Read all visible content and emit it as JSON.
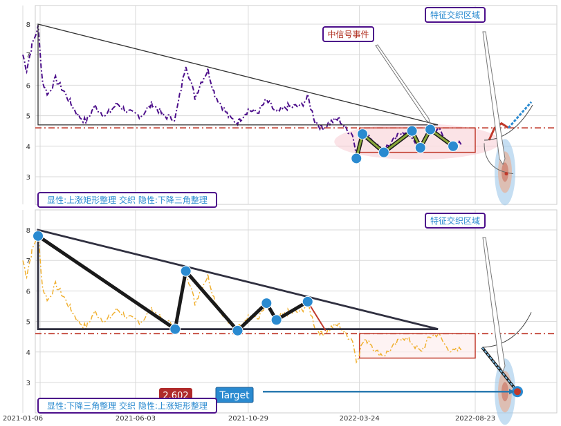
{
  "chart_data": {
    "type": "line",
    "x_ticks": [
      "2021-01-06",
      "2021-06-03",
      "2021-10-29",
      "2022-03-24",
      "2022-08-23"
    ],
    "y_ticks": [
      3,
      4,
      5,
      6,
      7,
      8
    ],
    "ylim": [
      2.2,
      8.6
    ],
    "support_level": 4.6,
    "grid": true,
    "panels": [
      {
        "id": "top",
        "series_color": "#4b0d8a",
        "price": [
          {
            "x": "2021-01-06",
            "y": 7.0
          },
          {
            "x": "2021-01-11",
            "y": 6.5
          },
          {
            "x": "2021-01-18",
            "y": 7.3
          },
          {
            "x": "2021-01-26",
            "y": 7.9
          },
          {
            "x": "2021-02-01",
            "y": 6.1
          },
          {
            "x": "2021-02-08",
            "y": 5.7
          },
          {
            "x": "2021-02-18",
            "y": 6.2
          },
          {
            "x": "2021-03-01",
            "y": 5.8
          },
          {
            "x": "2021-03-10",
            "y": 5.4
          },
          {
            "x": "2021-03-20",
            "y": 5.0
          },
          {
            "x": "2021-03-30",
            "y": 4.8
          },
          {
            "x": "2021-04-10",
            "y": 5.3
          },
          {
            "x": "2021-04-25",
            "y": 5.0
          },
          {
            "x": "2021-05-10",
            "y": 5.4
          },
          {
            "x": "2021-05-25",
            "y": 5.1
          },
          {
            "x": "2021-06-10",
            "y": 5.0
          },
          {
            "x": "2021-06-25",
            "y": 5.4
          },
          {
            "x": "2021-07-10",
            "y": 5.0
          },
          {
            "x": "2021-07-25",
            "y": 4.9
          },
          {
            "x": "2021-08-02",
            "y": 5.9
          },
          {
            "x": "2021-08-08",
            "y": 6.7
          },
          {
            "x": "2021-08-20",
            "y": 5.6
          },
          {
            "x": "2021-08-28",
            "y": 6.1
          },
          {
            "x": "2021-09-06",
            "y": 6.5
          },
          {
            "x": "2021-09-15",
            "y": 5.7
          },
          {
            "x": "2021-09-25",
            "y": 5.3
          },
          {
            "x": "2021-10-05",
            "y": 4.9
          },
          {
            "x": "2021-10-15",
            "y": 4.8
          },
          {
            "x": "2021-10-29",
            "y": 5.2
          },
          {
            "x": "2021-11-10",
            "y": 5.1
          },
          {
            "x": "2021-11-22",
            "y": 5.5
          },
          {
            "x": "2021-12-05",
            "y": 5.1
          },
          {
            "x": "2021-12-20",
            "y": 5.3
          },
          {
            "x": "2022-01-05",
            "y": 5.3
          },
          {
            "x": "2022-01-15",
            "y": 5.6
          },
          {
            "x": "2022-01-25",
            "y": 4.8
          },
          {
            "x": "2022-02-03",
            "y": 4.6
          },
          {
            "x": "2022-02-15",
            "y": 4.8
          },
          {
            "x": "2022-02-25",
            "y": 4.9
          },
          {
            "x": "2022-03-05",
            "y": 4.6
          },
          {
            "x": "2022-03-15",
            "y": 4.4
          },
          {
            "x": "2022-03-20",
            "y": 3.7
          },
          {
            "x": "2022-03-28",
            "y": 4.3
          },
          {
            "x": "2022-04-05",
            "y": 4.4
          },
          {
            "x": "2022-04-15",
            "y": 4.0
          },
          {
            "x": "2022-04-25",
            "y": 3.9
          },
          {
            "x": "2022-05-05",
            "y": 4.1
          },
          {
            "x": "2022-05-20",
            "y": 4.5
          },
          {
            "x": "2022-06-01",
            "y": 4.3
          },
          {
            "x": "2022-06-12",
            "y": 4.0
          },
          {
            "x": "2022-06-25",
            "y": 4.5
          },
          {
            "x": "2022-07-05",
            "y": 4.6
          },
          {
            "x": "2022-07-15",
            "y": 4.2
          },
          {
            "x": "2022-07-25",
            "y": 4.0
          },
          {
            "x": "2022-08-05",
            "y": 4.1
          }
        ],
        "triangle": [
          {
            "x": "2021-01-26",
            "y": 8.0
          },
          {
            "x": "2021-01-26",
            "y": 4.7
          },
          {
            "x": "2022-07-05",
            "y": 4.7
          }
        ],
        "rectangle": {
          "x0": "2022-03-24",
          "x1": "2022-08-23",
          "y0": 3.8,
          "y1": 4.6
        },
        "zigzag": [
          {
            "x": "2022-03-20",
            "y": 3.6
          },
          {
            "x": "2022-03-28",
            "y": 4.4
          },
          {
            "x": "2022-04-25",
            "y": 3.8
          },
          {
            "x": "2022-06-01",
            "y": 4.5
          },
          {
            "x": "2022-06-12",
            "y": 3.95
          },
          {
            "x": "2022-06-25",
            "y": 4.55
          },
          {
            "x": "2022-07-25",
            "y": 4.0
          }
        ],
        "annotations": [
          {
            "text": "中信号事件",
            "color": "#b03020"
          },
          {
            "text": "特征交织区域",
            "color": "#2a8ad0"
          }
        ],
        "footer_label": "显性:上涨矩形整理 交织 隐性:下降三角整理"
      },
      {
        "id": "bottom",
        "series_color": "#f0b030",
        "triangle": [
          {
            "x": "2021-01-26",
            "y": 8.0
          },
          {
            "x": "2021-01-26",
            "y": 4.75
          },
          {
            "x": "2022-07-05",
            "y": 4.75
          }
        ],
        "rectangle": {
          "x0": "2022-03-24",
          "x1": "2022-08-23",
          "y0": 3.8,
          "y1": 4.6
        },
        "zigzag": [
          {
            "x": "2021-01-26",
            "y": 7.8
          },
          {
            "x": "2021-07-25",
            "y": 4.75
          },
          {
            "x": "2021-08-08",
            "y": 6.65
          },
          {
            "x": "2021-10-15",
            "y": 4.7
          },
          {
            "x": "2021-11-22",
            "y": 5.6
          },
          {
            "x": "2021-12-05",
            "y": 5.05
          },
          {
            "x": "2022-01-15",
            "y": 5.65
          }
        ],
        "target_value": "2.602",
        "target_label": "Target",
        "annotations": [
          {
            "text": "特征交织区域",
            "color": "#2a8ad0"
          }
        ],
        "footer_label": "显性:下降三角整理 交织 隐性:上涨矩形整理"
      }
    ]
  }
}
